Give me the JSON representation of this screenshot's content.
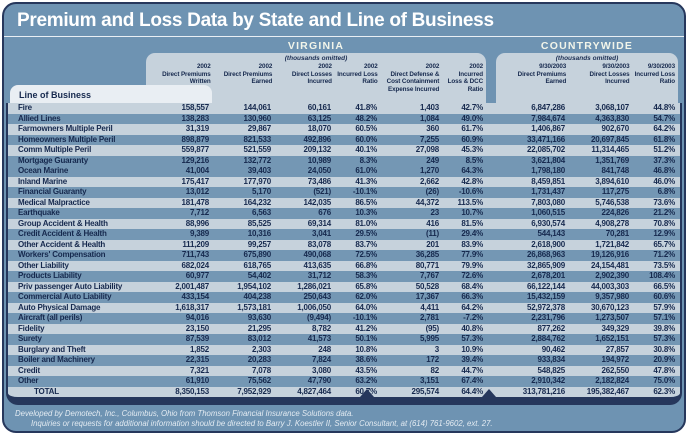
{
  "title": "Premium and Loss Data by State and Line of Business",
  "virginia": {
    "label": "VIRGINIA",
    "note": "(thousands omitted)"
  },
  "countrywide": {
    "label": "COUNTRYWIDE",
    "note": "(thousands omitted)"
  },
  "line_of_business_header": "Line of Business",
  "va_columns": [
    "2002\nDirect Premiums\nWritten",
    "2002\nDirect Premiums\nEarned",
    "2002\nDirect Losses\nIncurred",
    "2002\nIncurred Loss\nRatio",
    "2002\nDirect Defense &\nCost Containment\nExpense Incurred",
    "2002\nIncurred\nLoss & DCC\nRatio"
  ],
  "cw_columns": [
    "9/30/2003\nDirect Premiums\nEarned",
    "9/30/2003\nDirect Losses\nIncurred",
    "9/30/2003\nIncurred Loss\nRatio"
  ],
  "rows": [
    {
      "label": "Fire",
      "values": [
        "158,557",
        "144,061",
        "60,161",
        "41.8%",
        "1,403",
        "42.7%",
        "6,847,286",
        "3,068,107",
        "44.8%"
      ]
    },
    {
      "label": "Allied Lines",
      "values": [
        "138,283",
        "130,960",
        "63,125",
        "48.2%",
        "1,084",
        "49.0%",
        "7,984,674",
        "4,363,830",
        "54.7%"
      ]
    },
    {
      "label": "Farmowners Multiple Peril",
      "values": [
        "31,319",
        "29,867",
        "18,070",
        "60.5%",
        "360",
        "61.7%",
        "1,406,867",
        "902,670",
        "64.2%"
      ]
    },
    {
      "label": "Homeowners Multiple Peril",
      "values": [
        "898,879",
        "821,533",
        "492,896",
        "60.0%",
        "7,255",
        "60.9%",
        "33,471,166",
        "20,697,845",
        "61.8%"
      ]
    },
    {
      "label": "Comm Multiple Peril",
      "values": [
        "559,877",
        "521,559",
        "209,132",
        "40.1%",
        "27,098",
        "45.3%",
        "22,085,702",
        "11,314,465",
        "51.2%"
      ]
    },
    {
      "label": "Mortgage Guaranty",
      "values": [
        "129,216",
        "132,772",
        "10,989",
        "8.3%",
        "249",
        "8.5%",
        "3,621,804",
        "1,351,769",
        "37.3%"
      ]
    },
    {
      "label": "Ocean Marine",
      "values": [
        "41,004",
        "39,403",
        "24,050",
        "61.0%",
        "1,270",
        "64.3%",
        "1,798,180",
        "841,748",
        "46.8%"
      ]
    },
    {
      "label": "Inland Marine",
      "values": [
        "175,417",
        "177,970",
        "73,486",
        "41.3%",
        "2,662",
        "42.8%",
        "8,459,851",
        "3,894,610",
        "46.0%"
      ]
    },
    {
      "label": "Financial Guaranty",
      "values": [
        "13,012",
        "5,170",
        "(521)",
        "-10.1%",
        "(26)",
        "-10.6%",
        "1,731,437",
        "117,275",
        "6.8%"
      ]
    },
    {
      "label": "Medical Malpractice",
      "values": [
        "181,478",
        "164,232",
        "142,035",
        "86.5%",
        "44,372",
        "113.5%",
        "7,803,080",
        "5,746,538",
        "73.6%"
      ]
    },
    {
      "label": "Earthquake",
      "values": [
        "7,712",
        "6,563",
        "676",
        "10.3%",
        "23",
        "10.7%",
        "1,060,515",
        "224,826",
        "21.2%"
      ]
    },
    {
      "label": "Group Accident & Health",
      "values": [
        "88,996",
        "85,525",
        "69,314",
        "81.0%",
        "416",
        "81.5%",
        "6,930,574",
        "4,908,278",
        "70.8%"
      ]
    },
    {
      "label": "Credit Accident & Health",
      "values": [
        "9,389",
        "10,316",
        "3,041",
        "29.5%",
        "(11)",
        "29.4%",
        "544,143",
        "70,281",
        "12.9%"
      ]
    },
    {
      "label": "Other Accident & Health",
      "values": [
        "111,209",
        "99,257",
        "83,078",
        "83.7%",
        "201",
        "83.9%",
        "2,618,900",
        "1,721,842",
        "65.7%"
      ]
    },
    {
      "label": "Workers' Compensation",
      "values": [
        "711,743",
        "675,890",
        "490,068",
        "72.5%",
        "36,285",
        "77.9%",
        "26,868,963",
        "19,126,916",
        "71.2%"
      ]
    },
    {
      "label": "Other Liability",
      "values": [
        "682,024",
        "618,765",
        "413,635",
        "66.8%",
        "80,771",
        "79.9%",
        "32,865,909",
        "24,154,481",
        "73.5%"
      ]
    },
    {
      "label": "Products Liability",
      "values": [
        "60,977",
        "54,402",
        "31,712",
        "58.3%",
        "7,767",
        "72.6%",
        "2,678,201",
        "2,902,390",
        "108.4%"
      ]
    },
    {
      "label": "Priv passenger Auto Liability",
      "values": [
        "2,001,487",
        "1,954,102",
        "1,286,021",
        "65.8%",
        "50,528",
        "68.4%",
        "66,122,144",
        "44,003,303",
        "66.5%"
      ]
    },
    {
      "label": "Commercial Auto Liability",
      "values": [
        "433,154",
        "404,238",
        "250,643",
        "62.0%",
        "17,367",
        "66.3%",
        "15,432,159",
        "9,357,980",
        "60.6%"
      ]
    },
    {
      "label": "Auto Physical Damage",
      "values": [
        "1,618,317",
        "1,573,181",
        "1,006,050",
        "64.0%",
        "4,411",
        "64.2%",
        "52,972,378",
        "30,670,123",
        "57.9%"
      ]
    },
    {
      "label": "Aircraft (all perils)",
      "values": [
        "94,016",
        "93,630",
        "(9,494)",
        "-10.1%",
        "2,781",
        "-7.2%",
        "2,231,796",
        "1,273,507",
        "57.1%"
      ]
    },
    {
      "label": "Fidelity",
      "values": [
        "23,150",
        "21,295",
        "8,782",
        "41.2%",
        "(95)",
        "40.8%",
        "877,262",
        "349,329",
        "39.8%"
      ]
    },
    {
      "label": "Surety",
      "values": [
        "87,539",
        "83,012",
        "41,573",
        "50.1%",
        "5,995",
        "57.3%",
        "2,884,762",
        "1,652,151",
        "57.3%"
      ]
    },
    {
      "label": "Burglary and Theft",
      "values": [
        "1,852",
        "2,303",
        "248",
        "10.8%",
        "3",
        "10.9%",
        "90,462",
        "27,857",
        "30.8%"
      ]
    },
    {
      "label": "Boiler and Machinery",
      "values": [
        "22,315",
        "20,283",
        "7,824",
        "38.6%",
        "172",
        "39.4%",
        "933,834",
        "194,972",
        "20.9%"
      ]
    },
    {
      "label": "Credit",
      "values": [
        "7,321",
        "7,078",
        "3,080",
        "43.5%",
        "82",
        "44.7%",
        "548,825",
        "262,550",
        "47.8%"
      ]
    },
    {
      "label": "Other",
      "values": [
        "61,910",
        "75,562",
        "47,790",
        "63.2%",
        "3,151",
        "67.4%",
        "2,910,342",
        "2,182,824",
        "75.0%"
      ]
    }
  ],
  "total": {
    "label": "TOTAL",
    "values": [
      "8,350,153",
      "7,952,929",
      "4,827,464",
      "60.7%",
      "295,574",
      "64.4%",
      "313,781,216",
      "195,382,467",
      "62.3%"
    ]
  },
  "footer": {
    "line1": "Developed by Demotech, Inc., Columbus, Ohio from Thomson Financial Insurance Solutions data.",
    "line2": "Inquiries or requests for additional information should be directed to Barry J. Koestler II, Senior Consultant, at (614) 761-9602, ext. 27."
  },
  "colors": {
    "panel_blue": "#6e93b2",
    "navy": "#26375c",
    "light_row": "#c6d2dc",
    "dark_row": "#7497b4",
    "header_box": "#c6d2dc",
    "line_of_business_box": "#e9eef3",
    "title_text": "#ffffff"
  }
}
